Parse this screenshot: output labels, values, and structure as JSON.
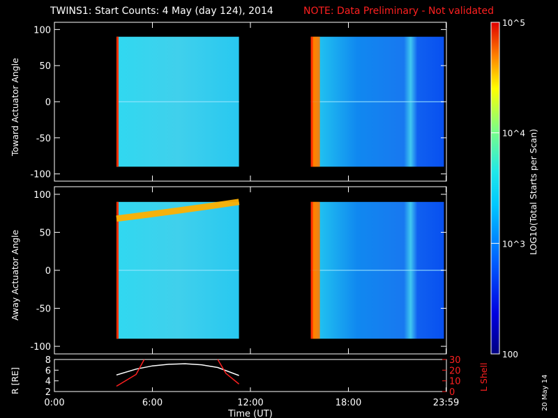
{
  "header": {
    "title": "TWINS1: Start Counts:  4 May (day 124), 2014",
    "note": "NOTE: Data Preliminary - Not validated"
  },
  "colorbar": {
    "label": "LOG10(Total Starts per Scan)",
    "ticks": [
      "10^5",
      "10^4",
      "10^3",
      "100"
    ],
    "range": [
      100,
      100000
    ],
    "scale": "log"
  },
  "datestamp": "20 May 14",
  "chart_data": [
    {
      "type": "heatmap",
      "title": "",
      "ylabel": "Toward Actuator Angle",
      "ylim": [
        -110,
        110
      ],
      "yticks": [
        100,
        50,
        0,
        -50,
        -100
      ],
      "xlim": [
        0,
        24
      ],
      "data_intervals_hours": [
        [
          3.8,
          11.3
        ],
        [
          15.7,
          23.85
        ]
      ],
      "angle_range": [
        -90,
        90
      ],
      "colorscale_log10_range": [
        2,
        5
      ]
    },
    {
      "type": "heatmap",
      "title": "",
      "ylabel": "Away Actuator Angle",
      "ylim": [
        -110,
        110
      ],
      "yticks": [
        100,
        50,
        0,
        -50,
        -100
      ],
      "xlim": [
        0,
        24
      ],
      "data_intervals_hours": [
        [
          3.8,
          11.3
        ],
        [
          15.7,
          23.85
        ]
      ],
      "angle_range": [
        -90,
        90
      ],
      "colorscale_log10_range": [
        2,
        5
      ]
    },
    {
      "type": "line",
      "xlabel": "Time (UT)",
      "xticks": [
        "0:00",
        "6:00",
        "12:00",
        "18:00",
        "23:59"
      ],
      "xtick_hours": [
        0,
        6,
        12,
        18,
        23.98
      ],
      "ylabel_left": "R [RE]",
      "yticks_left": [
        2,
        4,
        6,
        8
      ],
      "ylim_left": [
        2,
        8
      ],
      "ylabel_right": "L Shell",
      "yticks_right": [
        0,
        10,
        20,
        30
      ],
      "ylim_right": [
        0,
        30
      ],
      "series": [
        {
          "name": "R",
          "color": "#ffffff",
          "x": [
            3.8,
            5,
            6,
            7,
            8,
            9,
            10,
            11.3
          ],
          "values": [
            5.1,
            6.2,
            6.8,
            7.1,
            7.2,
            7.0,
            6.5,
            5.0
          ]
        },
        {
          "name": "L Shell",
          "color": "#ff2020",
          "x": [
            3.8,
            5,
            5.5,
            10,
            10.5,
            11.3
          ],
          "values": [
            5,
            16,
            30,
            30,
            17,
            7
          ]
        }
      ]
    }
  ]
}
